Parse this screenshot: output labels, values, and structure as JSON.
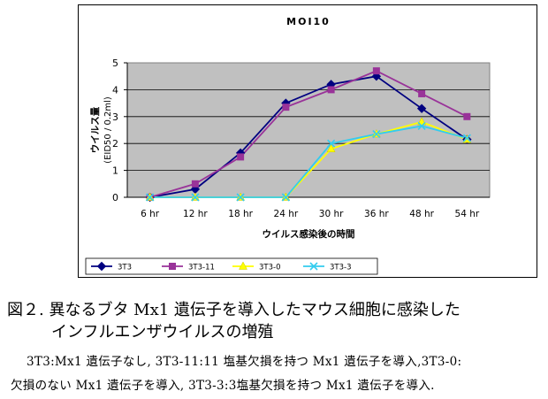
{
  "chart_data": {
    "type": "line",
    "title": "MOI10",
    "xlabel": "ウイルス感染後の時間",
    "ylabel": "ウイルス量",
    "ylabel_unit": "(EID50 / 0.2ml)",
    "categories": [
      "6 hr",
      "12 hr",
      "18 hr",
      "24 hr",
      "30 hr",
      "36 hr",
      "48 hr",
      "54 hr"
    ],
    "ylim": [
      0,
      5
    ],
    "yticks": [
      "0",
      "1",
      "2",
      "3",
      "4",
      "5"
    ],
    "grid": true,
    "legend_position": "bottom",
    "plot_background": "#c0c0c0",
    "series": [
      {
        "name": "3T3",
        "color": "#000080",
        "marker": "diamond",
        "values": [
          0,
          0.3,
          1.65,
          3.5,
          4.2,
          4.5,
          3.3,
          2.15
        ]
      },
      {
        "name": "3T3-11",
        "color": "#993399",
        "marker": "square",
        "values": [
          0,
          0.5,
          1.5,
          3.35,
          4.0,
          4.7,
          3.85,
          3.0
        ]
      },
      {
        "name": "3T3-0",
        "color": "#ffff00",
        "marker": "triangle",
        "values": [
          0,
          0,
          0,
          0,
          1.8,
          2.35,
          2.8,
          2.15
        ]
      },
      {
        "name": "3T3-3",
        "color": "#33ccee",
        "marker": "x",
        "values": [
          0,
          0,
          0,
          0,
          2.0,
          2.35,
          2.65,
          2.2
        ]
      }
    ]
  },
  "caption": {
    "title_line1": "図２. 異なるブタ Mx1 遺伝子を導入したマウス細胞に感染した",
    "title_line2": "インフルエンザウイルスの増殖",
    "note_line1": "3T3:Mx1 遺伝子なし, 3T3-11:11 塩基欠損を持つ Mx1 遺伝子を導入,3T3-0:",
    "note_line2": "欠損のない Mx1 遺伝子を導入, 3T3-3:3塩基欠損を持つ Mx1 遺伝子を導入."
  }
}
